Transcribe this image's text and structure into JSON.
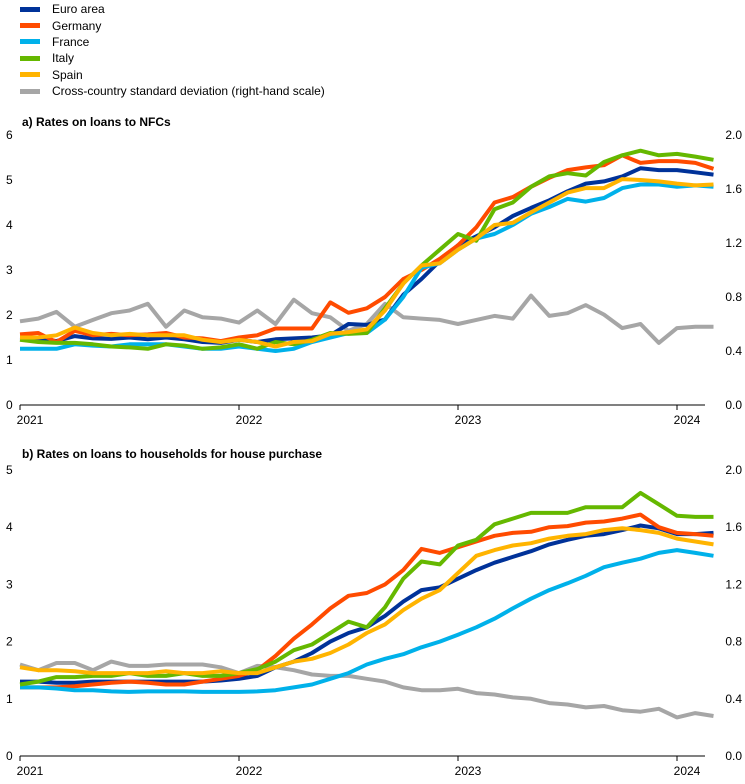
{
  "legend": [
    {
      "label": "Euro area",
      "color": "#003299"
    },
    {
      "label": "Germany",
      "color": "#ff4b00"
    },
    {
      "label": "France",
      "color": "#00b1ea"
    },
    {
      "label": "Italy",
      "color": "#65b800"
    },
    {
      "label": "Spain",
      "color": "#ffb400"
    },
    {
      "label": "Cross-country standard deviation (right-hand scale)",
      "color": "#a6a6a6"
    }
  ],
  "chart_data": [
    {
      "type": "line",
      "title": "a) Rates on loans to NFCs",
      "x_tick_labels": [
        "2021",
        "2022",
        "2023",
        "2024"
      ],
      "x_start": "2021-01",
      "ylim": [
        0,
        6
      ],
      "y_ticks": [
        "0",
        "1",
        "2",
        "3",
        "4",
        "5",
        "6"
      ],
      "y2lim": [
        0,
        2
      ],
      "y2_ticks": [
        "0.0",
        "0.4",
        "0.8",
        "1.2",
        "1.6",
        "2.0"
      ],
      "series": [
        {
          "name": "Euro area",
          "color": "#003299",
          "axis": "left",
          "values": [
            1.5,
            1.48,
            1.42,
            1.53,
            1.48,
            1.47,
            1.5,
            1.46,
            1.5,
            1.46,
            1.4,
            1.38,
            1.45,
            1.4,
            1.46,
            1.48,
            1.5,
            1.55,
            1.8,
            1.78,
            1.9,
            2.45,
            2.8,
            3.2,
            3.55,
            3.75,
            3.95,
            4.2,
            4.38,
            4.55,
            4.75,
            4.92,
            4.97,
            5.08,
            5.26,
            5.22,
            5.22,
            5.17,
            5.12
          ]
        },
        {
          "name": "Germany",
          "color": "#ff4b00",
          "axis": "left",
          "values": [
            1.57,
            1.6,
            1.4,
            1.65,
            1.55,
            1.58,
            1.55,
            1.57,
            1.6,
            1.5,
            1.48,
            1.42,
            1.5,
            1.55,
            1.7,
            1.7,
            1.7,
            2.28,
            2.05,
            2.15,
            2.4,
            2.8,
            3.0,
            3.25,
            3.55,
            3.95,
            4.5,
            4.62,
            4.85,
            5.05,
            5.22,
            5.28,
            5.33,
            5.55,
            5.38,
            5.42,
            5.42,
            5.38,
            5.25
          ]
        },
        {
          "name": "France",
          "color": "#00b1ea",
          "axis": "left",
          "values": [
            1.25,
            1.25,
            1.25,
            1.35,
            1.32,
            1.3,
            1.35,
            1.35,
            1.35,
            1.3,
            1.25,
            1.25,
            1.3,
            1.25,
            1.2,
            1.25,
            1.4,
            1.5,
            1.6,
            1.6,
            1.9,
            2.4,
            3.05,
            3.15,
            3.45,
            3.7,
            3.8,
            4.0,
            4.25,
            4.4,
            4.58,
            4.52,
            4.6,
            4.82,
            4.9,
            4.9,
            4.85,
            4.88,
            4.85
          ]
        },
        {
          "name": "Italy",
          "color": "#65b800",
          "axis": "left",
          "values": [
            1.45,
            1.4,
            1.38,
            1.38,
            1.35,
            1.3,
            1.28,
            1.25,
            1.35,
            1.32,
            1.25,
            1.28,
            1.35,
            1.25,
            1.4,
            1.35,
            1.45,
            1.6,
            1.58,
            1.6,
            2.15,
            2.7,
            3.1,
            3.45,
            3.8,
            3.65,
            4.35,
            4.5,
            4.85,
            5.08,
            5.15,
            5.1,
            5.4,
            5.55,
            5.65,
            5.55,
            5.58,
            5.52,
            5.45
          ]
        },
        {
          "name": "Spain",
          "color": "#ffb400",
          "axis": "left",
          "values": [
            1.5,
            1.5,
            1.55,
            1.72,
            1.6,
            1.55,
            1.58,
            1.55,
            1.55,
            1.55,
            1.45,
            1.4,
            1.45,
            1.4,
            1.3,
            1.4,
            1.42,
            1.58,
            1.62,
            1.68,
            2.1,
            2.7,
            3.1,
            3.15,
            3.45,
            3.7,
            4.0,
            4.05,
            4.28,
            4.5,
            4.72,
            4.82,
            4.82,
            5.02,
            5.0,
            4.97,
            4.92,
            4.88,
            4.9
          ]
        },
        {
          "name": "Cross-country standard deviation (right-hand scale)",
          "color": "#a6a6a6",
          "axis": "right",
          "values": [
            0.62,
            0.64,
            0.69,
            0.58,
            0.63,
            0.68,
            0.7,
            0.75,
            0.58,
            0.7,
            0.65,
            0.64,
            0.61,
            0.7,
            0.6,
            0.78,
            0.68,
            0.65,
            0.55,
            0.6,
            0.75,
            0.65,
            0.64,
            0.63,
            0.6,
            0.63,
            0.66,
            0.64,
            0.81,
            0.66,
            0.68,
            0.74,
            0.67,
            0.57,
            0.6,
            0.46,
            0.57,
            0.58,
            0.58
          ]
        }
      ]
    },
    {
      "type": "line",
      "title": "b) Rates on loans to households for house purchase",
      "x_tick_labels": [
        "2021",
        "2022",
        "2023",
        "2024"
      ],
      "x_start": "2021-01",
      "ylim": [
        0,
        5
      ],
      "y_ticks": [
        "0",
        "1",
        "2",
        "3",
        "4",
        "5"
      ],
      "y2lim": [
        0,
        2
      ],
      "y2_ticks": [
        "0.0",
        "0.4",
        "0.8",
        "1.2",
        "1.6",
        "2.0"
      ],
      "series": [
        {
          "name": "Euro area",
          "color": "#003299",
          "axis": "left",
          "values": [
            1.3,
            1.3,
            1.28,
            1.28,
            1.3,
            1.3,
            1.3,
            1.3,
            1.3,
            1.3,
            1.3,
            1.32,
            1.35,
            1.4,
            1.55,
            1.65,
            1.8,
            2.0,
            2.15,
            2.25,
            2.45,
            2.7,
            2.9,
            2.95,
            3.1,
            3.25,
            3.38,
            3.48,
            3.58,
            3.7,
            3.78,
            3.85,
            3.88,
            3.95,
            4.03,
            3.98,
            3.88,
            3.88,
            3.9
          ]
        },
        {
          "name": "Germany",
          "color": "#ff4b00",
          "axis": "left",
          "values": [
            1.2,
            1.2,
            1.2,
            1.22,
            1.25,
            1.28,
            1.3,
            1.28,
            1.25,
            1.25,
            1.3,
            1.35,
            1.4,
            1.5,
            1.75,
            2.05,
            2.3,
            2.58,
            2.8,
            2.85,
            3.0,
            3.25,
            3.62,
            3.55,
            3.65,
            3.75,
            3.85,
            3.9,
            3.92,
            4.0,
            4.02,
            4.08,
            4.1,
            4.15,
            4.22,
            4.0,
            3.9,
            3.88,
            3.85
          ]
        },
        {
          "name": "France",
          "color": "#00b1ea",
          "axis": "left",
          "values": [
            1.2,
            1.2,
            1.18,
            1.15,
            1.15,
            1.13,
            1.12,
            1.13,
            1.13,
            1.13,
            1.12,
            1.12,
            1.12,
            1.13,
            1.15,
            1.2,
            1.25,
            1.35,
            1.45,
            1.6,
            1.7,
            1.78,
            1.9,
            2.0,
            2.12,
            2.25,
            2.4,
            2.58,
            2.75,
            2.9,
            3.02,
            3.15,
            3.3,
            3.38,
            3.45,
            3.55,
            3.6,
            3.55,
            3.5
          ]
        },
        {
          "name": "Italy",
          "color": "#65b800",
          "axis": "left",
          "values": [
            1.25,
            1.3,
            1.38,
            1.38,
            1.4,
            1.4,
            1.45,
            1.4,
            1.4,
            1.45,
            1.4,
            1.4,
            1.45,
            1.52,
            1.65,
            1.85,
            1.95,
            2.15,
            2.35,
            2.25,
            2.6,
            3.1,
            3.4,
            3.35,
            3.68,
            3.78,
            4.05,
            4.15,
            4.25,
            4.25,
            4.25,
            4.35,
            4.35,
            4.35,
            4.6,
            4.4,
            4.2,
            4.18,
            4.18
          ]
        },
        {
          "name": "Spain",
          "color": "#ffb400",
          "axis": "left",
          "values": [
            1.55,
            1.5,
            1.5,
            1.48,
            1.45,
            1.45,
            1.45,
            1.45,
            1.48,
            1.45,
            1.45,
            1.48,
            1.45,
            1.45,
            1.55,
            1.65,
            1.7,
            1.8,
            1.95,
            2.15,
            2.3,
            2.55,
            2.75,
            2.9,
            3.2,
            3.5,
            3.6,
            3.68,
            3.72,
            3.8,
            3.85,
            3.88,
            3.95,
            3.98,
            3.95,
            3.9,
            3.8,
            3.75,
            3.7
          ]
        },
        {
          "name": "Cross-country standard deviation (right-hand scale)",
          "color": "#a6a6a6",
          "axis": "right",
          "values": [
            0.64,
            0.6,
            0.65,
            0.65,
            0.6,
            0.66,
            0.63,
            0.63,
            0.64,
            0.64,
            0.64,
            0.62,
            0.58,
            0.63,
            0.62,
            0.6,
            0.57,
            0.56,
            0.56,
            0.54,
            0.52,
            0.48,
            0.46,
            0.46,
            0.47,
            0.44,
            0.43,
            0.41,
            0.4,
            0.37,
            0.36,
            0.34,
            0.35,
            0.32,
            0.31,
            0.33,
            0.27,
            0.3,
            0.28
          ]
        }
      ]
    }
  ]
}
